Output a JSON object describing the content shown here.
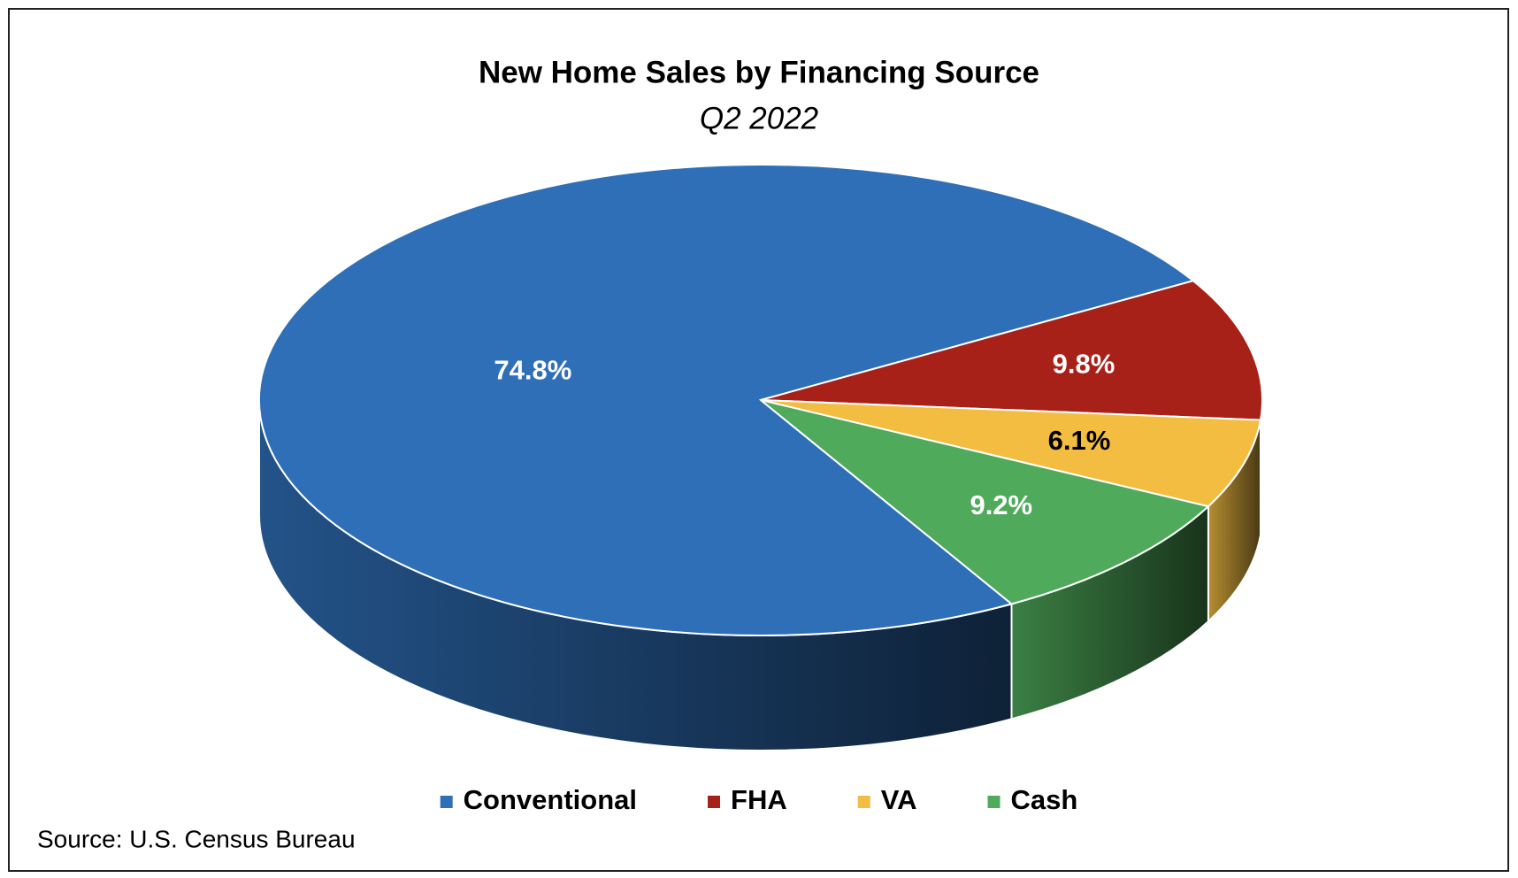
{
  "chart_data": {
    "type": "pie3d",
    "title": "New Home Sales by Financing Source",
    "subtitle": "Q2 2022",
    "categories": [
      "Conventional",
      "FHA",
      "VA",
      "Cash"
    ],
    "values": [
      74.8,
      9.8,
      6.1,
      9.2
    ],
    "value_labels": [
      "74.8%",
      "9.8%",
      "6.1%",
      "9.2%"
    ],
    "colors": [
      "#2e6fb7",
      "#a82119",
      "#f3bd41",
      "#4faa5b"
    ],
    "legend": "bottom",
    "source": "Source: U.S. Census Bureau"
  }
}
